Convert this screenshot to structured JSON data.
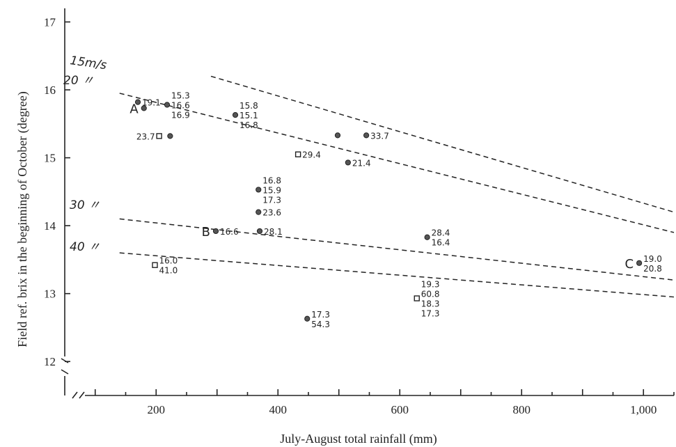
{
  "chart_data": {
    "type": "scatter",
    "title": "",
    "xlabel": "July-August total rainfall (mm)",
    "ylabel": "Field ref. brix in the beginning of October (degree)",
    "xlim": [
      50,
      1050
    ],
    "ylim": [
      11.5,
      17.2
    ],
    "x_ticks": [
      {
        "value": 200,
        "label": "200"
      },
      {
        "value": 400,
        "label": "400"
      },
      {
        "value": 600,
        "label": "600"
      },
      {
        "value": 800,
        "label": "800"
      },
      {
        "value": 1000,
        "label": "1,000"
      }
    ],
    "y_ticks": [
      {
        "value": 12,
        "label": "12"
      },
      {
        "value": 13,
        "label": "13"
      },
      {
        "value": 14,
        "label": "14"
      },
      {
        "value": 15,
        "label": "15"
      },
      {
        "value": 16,
        "label": "16"
      },
      {
        "value": 17,
        "label": "17"
      }
    ],
    "grid": false,
    "wind_lines": [
      {
        "label": "15m/s",
        "x": [
          290,
          1050
        ],
        "y": [
          16.2,
          14.2
        ]
      },
      {
        "label": "20 〃",
        "x": [
          140,
          1050
        ],
        "y": [
          15.95,
          13.9
        ]
      },
      {
        "label": "30 〃",
        "x": [
          140,
          1050
        ],
        "y": [
          14.1,
          13.2
        ]
      },
      {
        "label": "40 〃",
        "x": [
          140,
          1050
        ],
        "y": [
          13.6,
          12.95
        ]
      }
    ],
    "points": [
      {
        "marker": "circle",
        "x": 170,
        "y": 15.82,
        "letter": "",
        "labels": [
          "19.1"
        ]
      },
      {
        "marker": "circle",
        "x": 180,
        "y": 15.73,
        "letter": "A",
        "labels": []
      },
      {
        "marker": "circle",
        "x": 218,
        "y": 15.78,
        "letter": "",
        "labels": [
          "15.3",
          "16.6",
          "16.9"
        ]
      },
      {
        "marker": "circle",
        "x": 223,
        "y": 15.32,
        "letter": "",
        "labels": []
      },
      {
        "marker": "square",
        "x": 205,
        "y": 15.32,
        "letter": "",
        "labels": [
          "23.7"
        ]
      },
      {
        "marker": "circle",
        "x": 330,
        "y": 15.63,
        "letter": "",
        "labels": [
          "15.8",
          "15.1",
          "16.8"
        ]
      },
      {
        "marker": "circle",
        "x": 498,
        "y": 15.33,
        "letter": "",
        "labels": []
      },
      {
        "marker": "circle",
        "x": 545,
        "y": 15.33,
        "letter": "",
        "labels": [
          "33.7"
        ]
      },
      {
        "marker": "square",
        "x": 433,
        "y": 15.05,
        "letter": "",
        "labels": [
          "29.4"
        ]
      },
      {
        "marker": "circle",
        "x": 515,
        "y": 14.93,
        "letter": "",
        "labels": [
          "21.4"
        ]
      },
      {
        "marker": "circle",
        "x": 368,
        "y": 14.53,
        "letter": "",
        "labels": [
          "16.8",
          "15.9",
          "17.3"
        ]
      },
      {
        "marker": "circle",
        "x": 368,
        "y": 14.2,
        "letter": "",
        "labels": [
          "23.6"
        ]
      },
      {
        "marker": "circle",
        "x": 298,
        "y": 13.92,
        "letter": "B",
        "labels": [
          "16.6"
        ]
      },
      {
        "marker": "circle",
        "x": 370,
        "y": 13.92,
        "letter": "",
        "labels": [
          "28.1"
        ]
      },
      {
        "marker": "circle",
        "x": 645,
        "y": 13.83,
        "letter": "",
        "labels": [
          "28.4",
          "16.4"
        ]
      },
      {
        "marker": "circle",
        "x": 993,
        "y": 13.45,
        "letter": "C",
        "labels": [
          "19.0",
          "20.8"
        ]
      },
      {
        "marker": "square",
        "x": 198,
        "y": 13.42,
        "letter": "",
        "labels": [
          "16.0",
          "41.0"
        ]
      },
      {
        "marker": "square",
        "x": 628,
        "y": 12.93,
        "letter": "",
        "labels": [
          "19.3",
          "60.8",
          "18.3",
          "17.3"
        ]
      },
      {
        "marker": "circle",
        "x": 448,
        "y": 12.63,
        "letter": "",
        "labels": [
          "17.3",
          "54.3"
        ]
      }
    ]
  }
}
